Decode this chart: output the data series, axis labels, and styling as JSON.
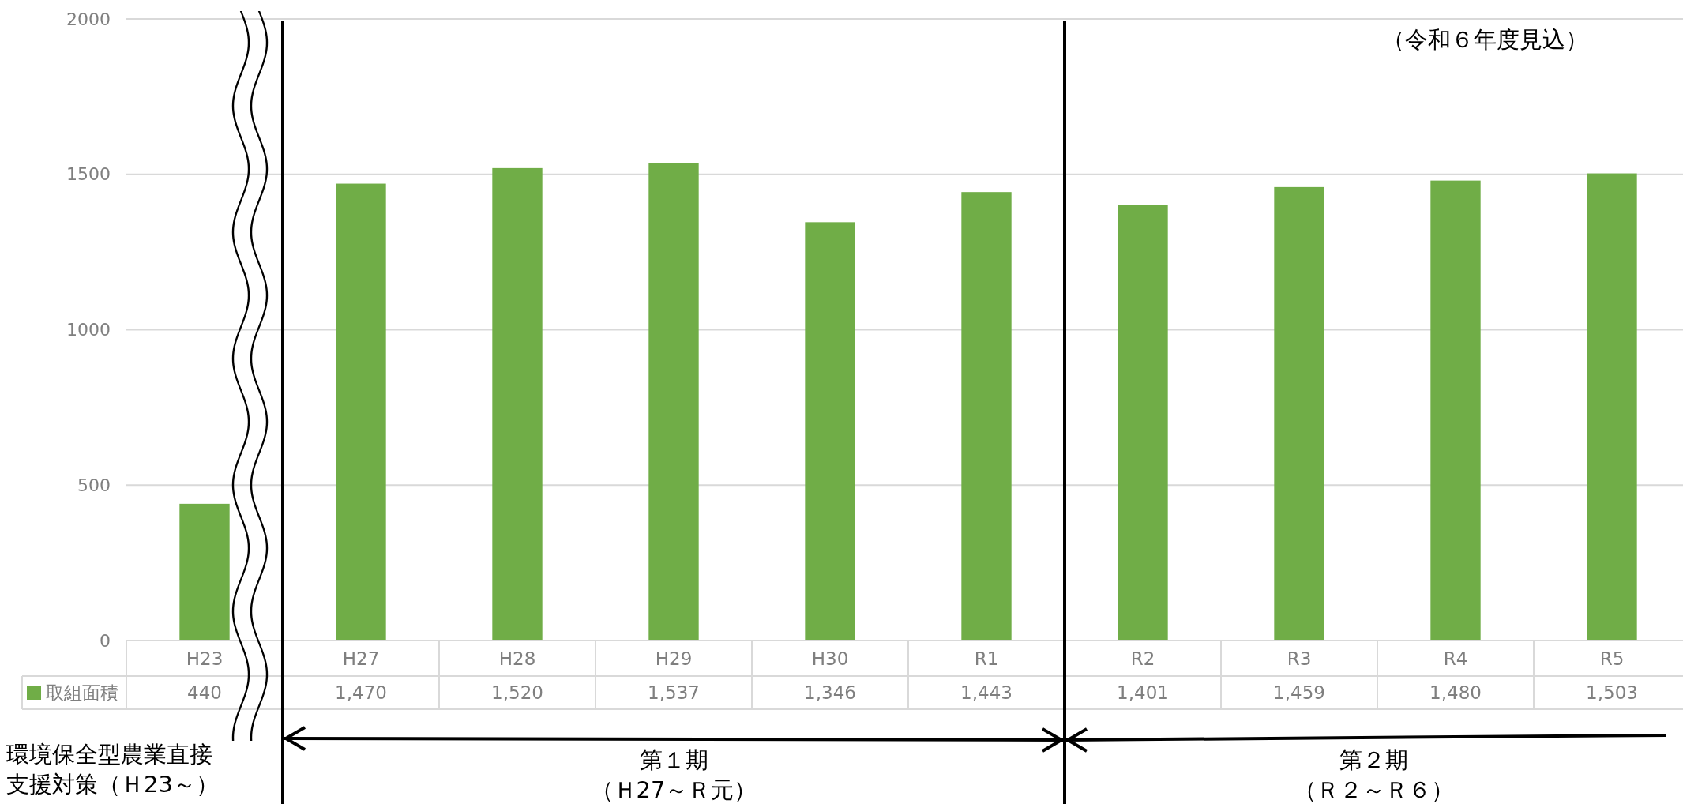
{
  "chart_data": {
    "type": "bar",
    "categories": [
      "H23",
      "H27",
      "H28",
      "H29",
      "H30",
      "R1",
      "R2",
      "R3",
      "R4",
      "R5"
    ],
    "series": [
      {
        "name": "取組面積",
        "color": "#70ad47",
        "values": [
          440,
          1470,
          1520,
          1537,
          1346,
          1443,
          1401,
          1459,
          1480,
          1503
        ],
        "value_labels": [
          "440",
          "1,470",
          "1,520",
          "1,537",
          "1,346",
          "1,443",
          "1,401",
          "1,459",
          "1,480",
          "1,503"
        ]
      }
    ],
    "ylim": [
      0,
      2000
    ],
    "yticks": [
      0,
      500,
      1000,
      1500,
      2000
    ],
    "grid": "y",
    "legend": "bottom",
    "annotations": [
      "環境保全型農業直接",
      "支援対策（Ｈ23～）",
      "第１期",
      "（Ｈ27～Ｒ元）",
      "第２期",
      "（Ｒ２～Ｒ６）",
      "（令和６年度見込）"
    ]
  }
}
